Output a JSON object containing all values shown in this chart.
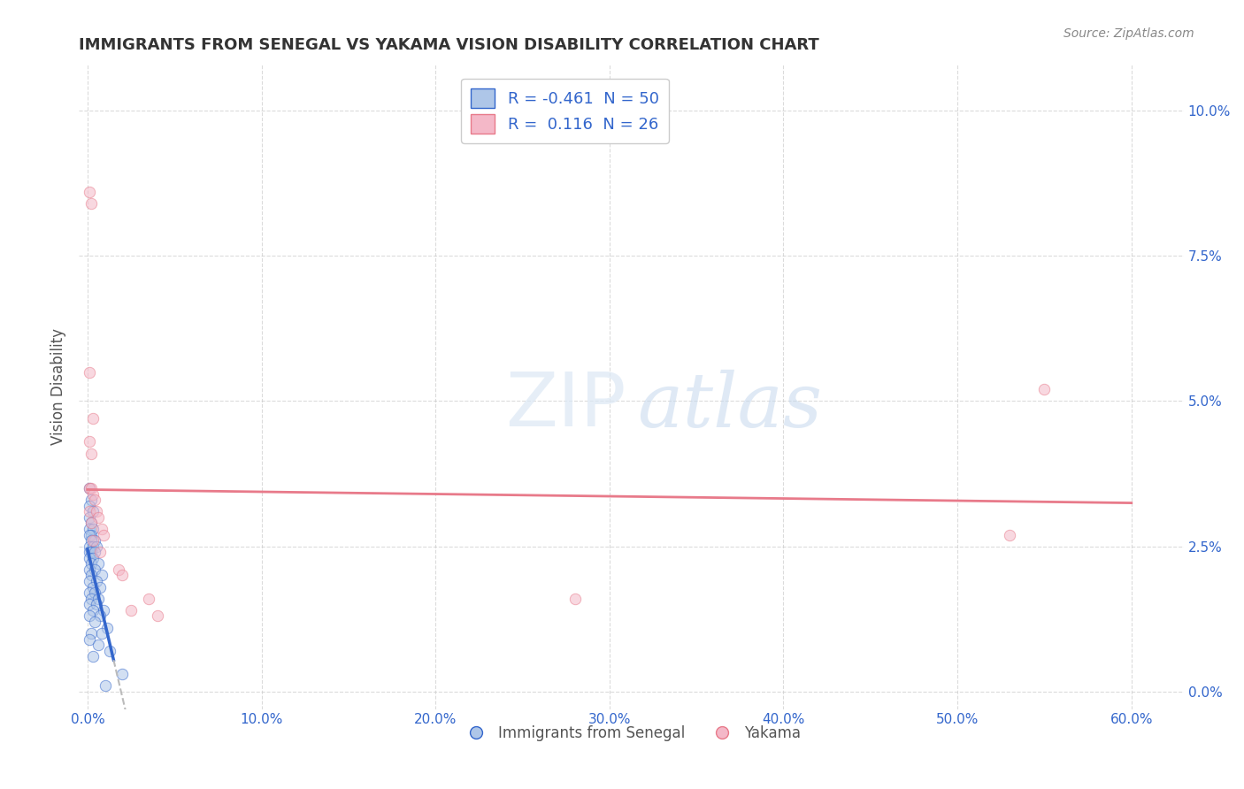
{
  "title": "IMMIGRANTS FROM SENEGAL VS YAKAMA VISION DISABILITY CORRELATION CHART",
  "source": "Source: ZipAtlas.com",
  "ylabel": "Vision Disability",
  "x_tick_labels": [
    "0.0%",
    "10.0%",
    "20.0%",
    "30.0%",
    "40.0%",
    "50.0%",
    "60.0%"
  ],
  "x_tick_values": [
    0.0,
    0.1,
    0.2,
    0.3,
    0.4,
    0.5,
    0.6
  ],
  "y_tick_labels": [
    "0.0%",
    "2.5%",
    "5.0%",
    "7.5%",
    "10.0%"
  ],
  "y_tick_values": [
    0.0,
    0.025,
    0.05,
    0.075,
    0.1
  ],
  "xlim": [
    -0.005,
    0.63
  ],
  "ylim": [
    -0.003,
    0.108
  ],
  "legend_entries": [
    {
      "label": "R = -0.461  N = 50",
      "color": "#aec6e8",
      "series": "blue"
    },
    {
      "label": "R =  0.116  N = 26",
      "color": "#f4b8c8",
      "series": "pink"
    }
  ],
  "legend_labels_bottom": [
    "Immigrants from Senegal",
    "Yakama"
  ],
  "R_blue": -0.461,
  "N_blue": 50,
  "R_pink": 0.116,
  "N_pink": 26,
  "blue_scatter": [
    [
      0.001,
      0.035
    ],
    [
      0.002,
      0.033
    ],
    [
      0.001,
      0.032
    ],
    [
      0.003,
      0.031
    ],
    [
      0.001,
      0.03
    ],
    [
      0.002,
      0.029
    ],
    [
      0.001,
      0.028
    ],
    [
      0.003,
      0.028
    ],
    [
      0.002,
      0.027
    ],
    [
      0.001,
      0.027
    ],
    [
      0.004,
      0.026
    ],
    [
      0.002,
      0.026
    ],
    [
      0.001,
      0.025
    ],
    [
      0.003,
      0.025
    ],
    [
      0.005,
      0.025
    ],
    [
      0.001,
      0.024
    ],
    [
      0.002,
      0.024
    ],
    [
      0.004,
      0.024
    ],
    [
      0.001,
      0.023
    ],
    [
      0.003,
      0.023
    ],
    [
      0.002,
      0.022
    ],
    [
      0.006,
      0.022
    ],
    [
      0.001,
      0.021
    ],
    [
      0.004,
      0.021
    ],
    [
      0.002,
      0.02
    ],
    [
      0.008,
      0.02
    ],
    [
      0.001,
      0.019
    ],
    [
      0.005,
      0.019
    ],
    [
      0.003,
      0.018
    ],
    [
      0.007,
      0.018
    ],
    [
      0.001,
      0.017
    ],
    [
      0.004,
      0.017
    ],
    [
      0.002,
      0.016
    ],
    [
      0.006,
      0.016
    ],
    [
      0.001,
      0.015
    ],
    [
      0.005,
      0.015
    ],
    [
      0.009,
      0.014
    ],
    [
      0.003,
      0.014
    ],
    [
      0.001,
      0.013
    ],
    [
      0.007,
      0.013
    ],
    [
      0.004,
      0.012
    ],
    [
      0.011,
      0.011
    ],
    [
      0.002,
      0.01
    ],
    [
      0.008,
      0.01
    ],
    [
      0.001,
      0.009
    ],
    [
      0.006,
      0.008
    ],
    [
      0.013,
      0.007
    ],
    [
      0.003,
      0.006
    ],
    [
      0.02,
      0.003
    ],
    [
      0.01,
      0.001
    ]
  ],
  "pink_scatter": [
    [
      0.001,
      0.086
    ],
    [
      0.002,
      0.084
    ],
    [
      0.001,
      0.055
    ],
    [
      0.003,
      0.047
    ],
    [
      0.001,
      0.043
    ],
    [
      0.002,
      0.041
    ],
    [
      0.001,
      0.035
    ],
    [
      0.002,
      0.035
    ],
    [
      0.003,
      0.034
    ],
    [
      0.004,
      0.033
    ],
    [
      0.001,
      0.031
    ],
    [
      0.005,
      0.031
    ],
    [
      0.006,
      0.03
    ],
    [
      0.002,
      0.029
    ],
    [
      0.008,
      0.028
    ],
    [
      0.009,
      0.027
    ],
    [
      0.003,
      0.026
    ],
    [
      0.007,
      0.024
    ],
    [
      0.018,
      0.021
    ],
    [
      0.02,
      0.02
    ],
    [
      0.035,
      0.016
    ],
    [
      0.025,
      0.014
    ],
    [
      0.04,
      0.013
    ],
    [
      0.55,
      0.052
    ],
    [
      0.53,
      0.027
    ],
    [
      0.28,
      0.016
    ]
  ],
  "blue_line_color": "#3366cc",
  "pink_line_color": "#e87a8a",
  "bg_color": "#ffffff",
  "scatter_alpha": 0.55,
  "scatter_size": 80,
  "grid_color": "#cccccc",
  "dashed_color": "#bbbbbb"
}
